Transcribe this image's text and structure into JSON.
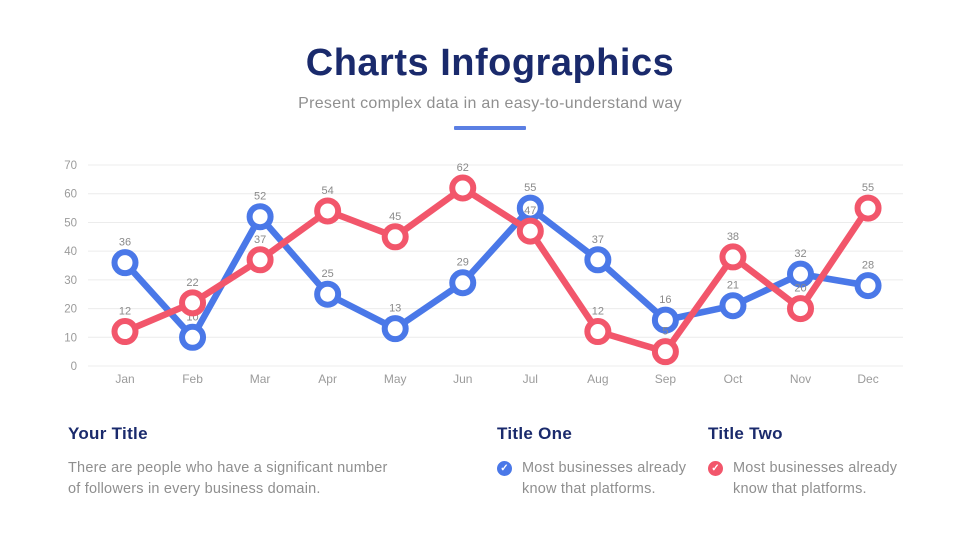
{
  "header": {
    "title": "Charts Infographics",
    "subtitle": "Present complex data in an easy-to-understand way"
  },
  "colors": {
    "navy": "#1A2A6C",
    "blue": "#4A78E8",
    "red": "#F2566B",
    "underline": "#5B7FE3",
    "body_text": "#8F8F8F",
    "axis_text": "#9B9B9B",
    "label_text": "#8A8A8A",
    "gridline": "#ECECEC"
  },
  "chart_data": {
    "type": "line",
    "categories": [
      "Jan",
      "Feb",
      "Mar",
      "Apr",
      "May",
      "Jun",
      "Jul",
      "Aug",
      "Sep",
      "Oct",
      "Nov",
      "Dec"
    ],
    "series": [
      {
        "name": "Title One",
        "color": "#4A78E8",
        "values": [
          36,
          10,
          52,
          25,
          13,
          29,
          55,
          37,
          16,
          21,
          32,
          28
        ]
      },
      {
        "name": "Title Two",
        "color": "#F2566B",
        "values": [
          12,
          22,
          37,
          54,
          45,
          62,
          47,
          12,
          5,
          38,
          20,
          55
        ]
      }
    ],
    "title": "",
    "xlabel": "",
    "ylabel": "",
    "ylim": [
      0,
      70
    ],
    "yticks": [
      0,
      10,
      20,
      30,
      40,
      50,
      60,
      70
    ],
    "grid": true,
    "legend_position": "none",
    "marker": "hollow-circle",
    "data_labels": true
  },
  "footer": {
    "col1": {
      "heading": "Your Title",
      "body": "There are people who have a significant number of followers in every business domain."
    },
    "col2": {
      "heading": "Title One",
      "icon": "check-circle-blue",
      "body": "Most businesses already know that platforms."
    },
    "col3": {
      "heading": "Title Two",
      "icon": "check-circle-red",
      "body": "Most businesses already know that platforms."
    }
  }
}
